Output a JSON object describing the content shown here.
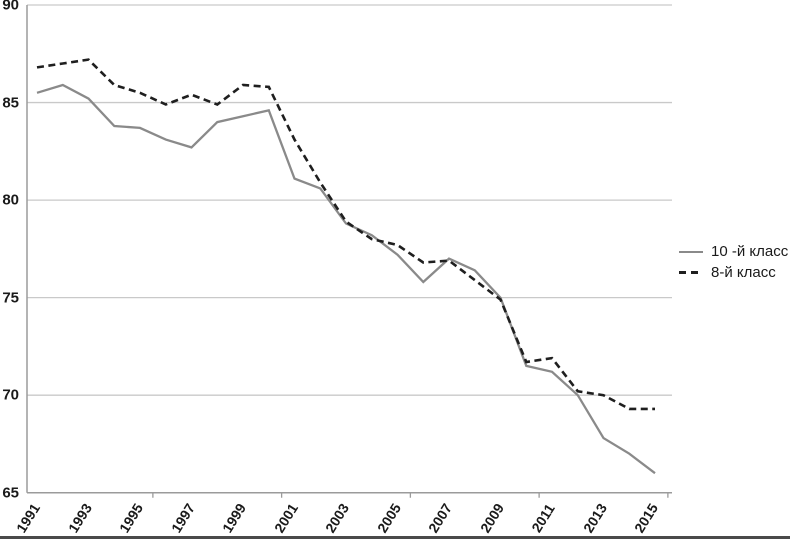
{
  "chart_data": {
    "type": "line",
    "title": "",
    "x": [
      1991,
      1992,
      1993,
      1994,
      1995,
      1996,
      1997,
      1998,
      1999,
      2000,
      2001,
      2002,
      2003,
      2004,
      2005,
      2006,
      2007,
      2008,
      2009,
      2010,
      2011,
      2012,
      2013,
      2014,
      2015
    ],
    "x_axis": {
      "tick_labels": [
        "1991",
        "1993",
        "1995",
        "1997",
        "1999",
        "2001",
        "2003",
        "2005",
        "2007",
        "2009",
        "2011",
        "2013",
        "2015"
      ],
      "minor_tick_years": [
        1995.5,
        2000.5,
        2005.5,
        2010.5,
        2015.5
      ]
    },
    "y_axis": {
      "ticks": [
        90,
        85,
        80,
        75,
        70,
        65
      ],
      "range": [
        65,
        90
      ]
    },
    "series": [
      {
        "name": "10 -й класс",
        "line_style": "solid",
        "color": "#8a8a8a",
        "values": [
          85.5,
          85.9,
          85.2,
          83.8,
          83.7,
          83.1,
          82.7,
          84.0,
          84.3,
          84.6,
          81.1,
          80.6,
          78.8,
          78.2,
          77.2,
          75.8,
          77.0,
          76.4,
          75.0,
          71.5,
          71.2,
          70.0,
          67.8,
          67.0,
          66.0
        ]
      },
      {
        "name": "8-й класс",
        "line_style": "dashed",
        "color": "#1f1f1f",
        "values": [
          86.8,
          87.0,
          87.2,
          85.9,
          85.5,
          84.9,
          85.4,
          84.9,
          85.9,
          85.8,
          83.1,
          80.9,
          78.9,
          78.0,
          77.7,
          76.8,
          76.9,
          75.9,
          74.9,
          71.7,
          71.9,
          70.2,
          70.0,
          69.3,
          69.3
        ]
      }
    ],
    "grid": "horizontal",
    "legend_position": "right"
  },
  "colors": {
    "gridline": "#c9c9c9",
    "axis": "#9b9b9b",
    "label_text": "#1a1a1a",
    "bottom_border": "#4a4a4a"
  }
}
